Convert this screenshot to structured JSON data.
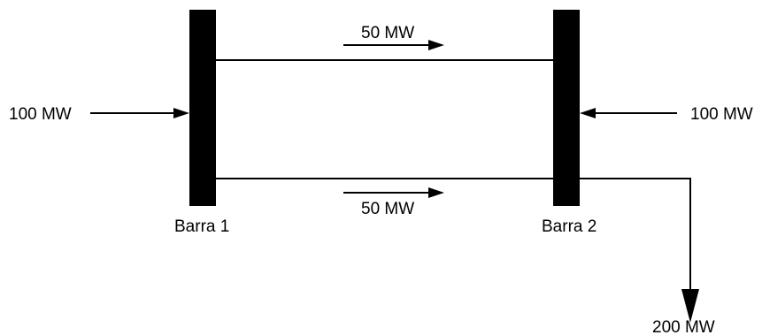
{
  "diagram": {
    "buses": [
      {
        "label": "Barra 1"
      },
      {
        "label": "Barra 2"
      }
    ],
    "lines": [
      {
        "flow_label": "50 MW",
        "flow_mw": 50,
        "direction": "Barra 1 → Barra 2"
      },
      {
        "flow_label": "50 MW",
        "flow_mw": 50,
        "direction": "Barra 1 → Barra 2"
      }
    ],
    "injections": [
      {
        "label": "100 MW",
        "value_mw": 100,
        "bus": "Barra 1"
      },
      {
        "label": "100 MW",
        "value_mw": 100,
        "bus": "Barra 2"
      }
    ],
    "load": {
      "label": "200 MW",
      "value_mw": 200,
      "bus": "Barra 2"
    }
  }
}
